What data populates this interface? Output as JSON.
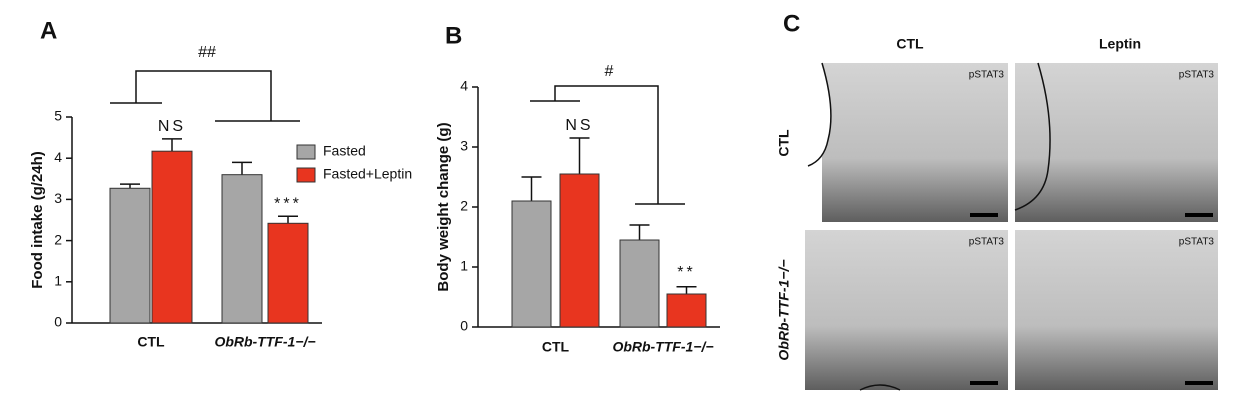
{
  "chart_data": [
    {
      "type": "bar",
      "panel": "A",
      "ylabel": "Food intake (g/24h)",
      "categories": [
        "CTL",
        "ObRb-TTF-1−/−"
      ],
      "series": [
        {
          "name": "Fasted",
          "color": "#a6a6a6",
          "values": [
            3.27,
            3.6
          ],
          "errors": [
            0.1,
            0.3
          ]
        },
        {
          "name": "Fasted+Leptin",
          "color": "#e8351f",
          "values": [
            4.17,
            2.42
          ],
          "errors": [
            0.3,
            0.17
          ]
        }
      ],
      "ylim": [
        0,
        5
      ],
      "yticks": [
        0,
        1,
        2,
        3,
        4,
        5
      ],
      "legend": "upper right",
      "annotations": [
        "NS",
        "***",
        "##"
      ]
    },
    {
      "type": "bar",
      "panel": "B",
      "ylabel": "Body weight change (g)",
      "categories": [
        "CTL",
        "ObRb-TTF-1−/−"
      ],
      "series": [
        {
          "name": "Fasted",
          "color": "#a6a6a6",
          "values": [
            2.1,
            1.45
          ],
          "errors": [
            0.4,
            0.25
          ]
        },
        {
          "name": "Fasted+Leptin",
          "color": "#e8351f",
          "values": [
            2.55,
            0.55
          ],
          "errors": [
            0.6,
            0.12
          ]
        }
      ],
      "ylim": [
        0,
        4
      ],
      "yticks": [
        0,
        1,
        2,
        3,
        4
      ],
      "annotations": [
        "NS",
        "**",
        "#"
      ]
    }
  ],
  "panel_c": {
    "panel": "C",
    "columns": [
      "CTL",
      "Leptin"
    ],
    "rows": [
      "CTL",
      "ObRb-TTF-1−/−"
    ],
    "stain": "pSTAT3"
  }
}
